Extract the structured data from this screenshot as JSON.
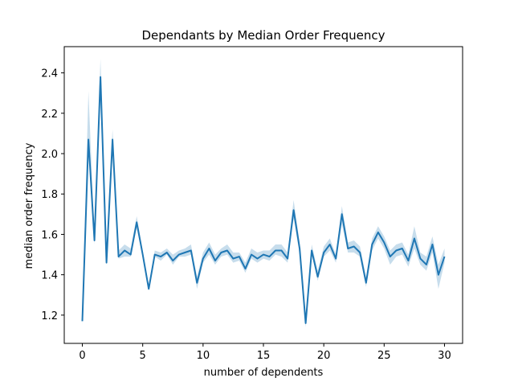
{
  "chart_data": {
    "type": "line",
    "title": "Dependants by Median Order Frequency",
    "xlabel": "number of dependents",
    "ylabel": "median order frequency",
    "xlim": [
      -1.5,
      31.5
    ],
    "ylim": [
      1.06,
      2.53
    ],
    "xticks": [
      0,
      5,
      10,
      15,
      20,
      25,
      30
    ],
    "yticks": [
      1.2,
      1.4,
      1.6,
      1.8,
      2.0,
      2.2,
      2.4
    ],
    "ytick_labels": [
      "1.2",
      "1.4",
      "1.6",
      "1.8",
      "2.0",
      "2.2",
      "2.4"
    ],
    "grid": false,
    "line_color": "#1f77b4",
    "band_color": "#1f77b4",
    "series": [
      {
        "x": [
          0,
          0.5,
          1,
          1.5,
          2,
          2.5,
          3,
          3.5,
          4,
          4.5,
          5,
          5.5,
          6,
          6.5,
          7,
          7.5,
          8,
          8.5,
          9,
          9.5,
          10,
          10.5,
          11,
          11.5,
          12,
          12.5,
          13,
          13.5,
          14,
          14.5,
          15,
          15.5,
          16,
          16.5,
          17,
          17.5,
          18,
          18.5,
          19,
          19.5,
          20,
          20.5,
          21,
          21.5,
          22,
          22.5,
          23,
          23.5,
          24,
          24.5,
          25,
          25.5,
          26,
          26.5,
          27,
          27.5,
          28,
          28.5,
          29,
          29.5,
          30
        ],
        "y": [
          1.17,
          2.07,
          1.57,
          2.38,
          1.46,
          2.07,
          1.49,
          1.52,
          1.5,
          1.66,
          1.5,
          1.33,
          1.5,
          1.49,
          1.51,
          1.47,
          1.5,
          1.51,
          1.52,
          1.36,
          1.48,
          1.53,
          1.47,
          1.51,
          1.52,
          1.48,
          1.49,
          1.43,
          1.5,
          1.48,
          1.5,
          1.49,
          1.52,
          1.52,
          1.48,
          1.72,
          1.53,
          1.16,
          1.52,
          1.39,
          1.51,
          1.55,
          1.48,
          1.7,
          1.53,
          1.54,
          1.51,
          1.36,
          1.55,
          1.61,
          1.56,
          1.49,
          1.52,
          1.53,
          1.47,
          1.58,
          1.48,
          1.45,
          1.55,
          1.4,
          1.49
        ],
        "ci_low": [
          1.15,
          2.02,
          1.55,
          2.3,
          1.45,
          2.03,
          1.48,
          1.49,
          1.49,
          1.63,
          1.49,
          1.32,
          1.49,
          1.47,
          1.5,
          1.45,
          1.49,
          1.49,
          1.5,
          1.33,
          1.46,
          1.5,
          1.45,
          1.49,
          1.5,
          1.46,
          1.47,
          1.41,
          1.48,
          1.46,
          1.48,
          1.47,
          1.5,
          1.49,
          1.46,
          1.68,
          1.5,
          1.14,
          1.5,
          1.37,
          1.49,
          1.52,
          1.46,
          1.65,
          1.51,
          1.51,
          1.49,
          1.34,
          1.52,
          1.58,
          1.53,
          1.45,
          1.49,
          1.5,
          1.44,
          1.53,
          1.45,
          1.42,
          1.51,
          1.33,
          1.46
        ],
        "ci_high": [
          1.2,
          2.31,
          1.6,
          2.47,
          1.49,
          2.12,
          1.52,
          1.55,
          1.53,
          1.69,
          1.52,
          1.35,
          1.52,
          1.51,
          1.53,
          1.5,
          1.52,
          1.53,
          1.55,
          1.39,
          1.51,
          1.56,
          1.5,
          1.53,
          1.55,
          1.51,
          1.51,
          1.46,
          1.53,
          1.51,
          1.52,
          1.52,
          1.55,
          1.55,
          1.51,
          1.77,
          1.56,
          1.19,
          1.55,
          1.42,
          1.54,
          1.58,
          1.5,
          1.74,
          1.56,
          1.57,
          1.54,
          1.39,
          1.58,
          1.64,
          1.59,
          1.52,
          1.55,
          1.56,
          1.5,
          1.64,
          1.51,
          1.49,
          1.59,
          1.45,
          1.53
        ]
      }
    ]
  }
}
